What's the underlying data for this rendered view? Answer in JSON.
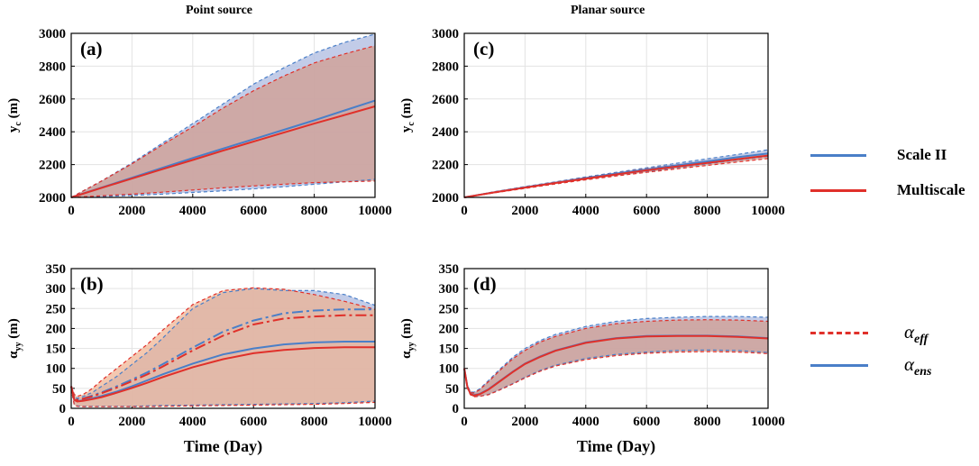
{
  "column_titles": {
    "left": "Point source",
    "right": "Planar source"
  },
  "legend": {
    "series": [
      {
        "label": "Scale II",
        "color": "#4a7fc8"
      },
      {
        "label": "Multiscale",
        "color": "#e0302a"
      }
    ],
    "statistics": [
      {
        "symbol": "α",
        "subscript": "eff",
        "style": "dash-dot"
      },
      {
        "symbol": "α",
        "subscript": "ens",
        "style": "solid"
      }
    ]
  },
  "colors": {
    "scale2": "#4a7fc8",
    "multiscale": "#e0302a",
    "scale2_band": "#b7c3e4",
    "multiscale_band": "#d39a8a",
    "multiscale_band_b": "#f0b08f"
  },
  "chart_data": [
    {
      "id": "a",
      "panel_label": "(a)",
      "type": "line",
      "xlabel": "",
      "ylabel": "y_c (m)",
      "xlim": [
        0,
        10000
      ],
      "ylim": [
        2000,
        3000
      ],
      "xticks": [
        "0",
        "2000",
        "4000",
        "6000",
        "8000",
        "10000"
      ],
      "yticks": [
        "2000",
        "2200",
        "2400",
        "2600",
        "2800",
        "3000"
      ],
      "grid": true,
      "x": [
        0,
        1000,
        2000,
        3000,
        4000,
        5000,
        6000,
        7000,
        8000,
        9000,
        10000
      ],
      "series": [
        {
          "name": "Scale II",
          "kind": "mean",
          "values": [
            2000,
            2060,
            2120,
            2180,
            2240,
            2298,
            2355,
            2412,
            2470,
            2530,
            2590
          ],
          "upper": [
            2000,
            2100,
            2210,
            2330,
            2450,
            2570,
            2690,
            2790,
            2880,
            2945,
            2995
          ],
          "lower": [
            2000,
            2005,
            2012,
            2020,
            2030,
            2040,
            2052,
            2065,
            2080,
            2095,
            2110
          ]
        },
        {
          "name": "Multiscale",
          "kind": "mean",
          "values": [
            2000,
            2058,
            2115,
            2172,
            2228,
            2285,
            2340,
            2395,
            2450,
            2502,
            2555
          ],
          "upper": [
            2000,
            2100,
            2205,
            2320,
            2430,
            2545,
            2650,
            2740,
            2820,
            2875,
            2925
          ],
          "lower": [
            2000,
            2010,
            2020,
            2032,
            2045,
            2058,
            2070,
            2080,
            2090,
            2095,
            2100
          ]
        }
      ]
    },
    {
      "id": "b",
      "panel_label": "(b)",
      "type": "line",
      "xlabel": "Time (Day)",
      "ylabel": "α_yy (m)",
      "xlim": [
        0,
        10000
      ],
      "ylim": [
        0,
        350
      ],
      "xticks": [
        "0",
        "2000",
        "4000",
        "6000",
        "8000",
        "10000"
      ],
      "yticks": [
        "0",
        "50",
        "100",
        "150",
        "200",
        "250",
        "300",
        "350"
      ],
      "grid": true,
      "x": [
        0,
        100,
        200,
        400,
        700,
        1000,
        1500,
        2000,
        2500,
        3000,
        4000,
        5000,
        6000,
        7000,
        8000,
        9000,
        10000
      ],
      "series": [
        {
          "name": "Scale II α_ens",
          "kind": "ens",
          "values": [
            55,
            22,
            18,
            20,
            25,
            31,
            42,
            55,
            70,
            85,
            112,
            135,
            150,
            160,
            165,
            167,
            167
          ],
          "upper": [
            55,
            30,
            25,
            30,
            40,
            55,
            80,
            110,
            140,
            175,
            250,
            290,
            300,
            295,
            295,
            285,
            258
          ],
          "lower": [
            50,
            10,
            6,
            5,
            5,
            5,
            5,
            5,
            6,
            7,
            8,
            9,
            10,
            11,
            12,
            14,
            18
          ]
        },
        {
          "name": "Scale II α_eff",
          "kind": "eff",
          "values": [
            55,
            25,
            22,
            25,
            32,
            40,
            55,
            72,
            90,
            110,
            152,
            192,
            220,
            238,
            245,
            248,
            248
          ]
        },
        {
          "name": "Multiscale α_ens",
          "kind": "ens",
          "values": [
            55,
            21,
            17,
            19,
            23,
            28,
            39,
            51,
            64,
            78,
            103,
            123,
            138,
            146,
            151,
            153,
            153
          ],
          "upper": [
            55,
            35,
            30,
            35,
            50,
            70,
            100,
            130,
            160,
            195,
            260,
            295,
            302,
            298,
            285,
            268,
            248
          ],
          "lower": [
            50,
            8,
            5,
            4,
            4,
            4,
            4,
            4,
            4,
            5,
            6,
            7,
            8,
            9,
            10,
            12,
            15
          ]
        },
        {
          "name": "Multiscale α_eff",
          "kind": "eff",
          "values": [
            55,
            24,
            21,
            24,
            30,
            38,
            52,
            68,
            85,
            104,
            145,
            182,
            210,
            225,
            230,
            233,
            233
          ]
        }
      ]
    },
    {
      "id": "c",
      "panel_label": "(c)",
      "type": "line",
      "xlabel": "",
      "ylabel": "y_c (m)",
      "xlim": [
        0,
        10000
      ],
      "ylim": [
        2000,
        3000
      ],
      "xticks": [
        "0",
        "2000",
        "4000",
        "6000",
        "8000",
        "10000"
      ],
      "yticks": [
        "2000",
        "2200",
        "2400",
        "2600",
        "2800",
        "3000"
      ],
      "grid": true,
      "x": [
        0,
        1000,
        2000,
        3000,
        4000,
        5000,
        6000,
        7000,
        8000,
        9000,
        10000
      ],
      "series": [
        {
          "name": "Scale II",
          "kind": "mean",
          "values": [
            2000,
            2032,
            2062,
            2090,
            2118,
            2145,
            2170,
            2195,
            2220,
            2245,
            2268
          ],
          "upper": [
            2000,
            2035,
            2066,
            2095,
            2125,
            2153,
            2180,
            2208,
            2235,
            2262,
            2290
          ],
          "lower": [
            2000,
            2029,
            2058,
            2085,
            2111,
            2137,
            2160,
            2182,
            2205,
            2228,
            2250
          ]
        },
        {
          "name": "Multiscale",
          "kind": "mean",
          "values": [
            2000,
            2031,
            2060,
            2088,
            2115,
            2140,
            2165,
            2188,
            2210,
            2233,
            2255
          ],
          "upper": [
            2000,
            2034,
            2064,
            2093,
            2121,
            2148,
            2174,
            2198,
            2222,
            2246,
            2268
          ],
          "lower": [
            2000,
            2028,
            2055,
            2082,
            2107,
            2131,
            2153,
            2174,
            2195,
            2216,
            2237
          ]
        }
      ]
    },
    {
      "id": "d",
      "panel_label": "(d)",
      "type": "line",
      "xlabel": "Time (Day)",
      "ylabel": "α_yy (m)",
      "xlim": [
        0,
        10000
      ],
      "ylim": [
        0,
        350
      ],
      "xticks": [
        "0",
        "2000",
        "4000",
        "6000",
        "8000",
        "10000"
      ],
      "yticks": [
        "0",
        "50",
        "100",
        "150",
        "200",
        "250",
        "300",
        "350"
      ],
      "grid": true,
      "x": [
        0,
        100,
        200,
        300,
        500,
        800,
        1200,
        1600,
        2000,
        2500,
        3000,
        4000,
        5000,
        6000,
        7000,
        8000,
        9000,
        10000
      ],
      "series": [
        {
          "name": "Scale II",
          "kind": "mean",
          "values": [
            100,
            55,
            38,
            33,
            36,
            48,
            70,
            92,
            112,
            130,
            145,
            165,
            176,
            181,
            182,
            182,
            180,
            176
          ],
          "upper": [
            100,
            58,
            42,
            40,
            48,
            70,
            100,
            128,
            150,
            170,
            185,
            205,
            218,
            225,
            228,
            230,
            230,
            228
          ],
          "lower": [
            100,
            52,
            35,
            30,
            30,
            35,
            48,
            62,
            78,
            95,
            108,
            125,
            135,
            141,
            145,
            146,
            145,
            140
          ]
        },
        {
          "name": "Multiscale",
          "kind": "mean",
          "values": [
            100,
            54,
            37,
            32,
            35,
            47,
            69,
            91,
            111,
            129,
            144,
            164,
            175,
            180,
            181,
            181,
            179,
            175
          ],
          "upper": [
            100,
            57,
            41,
            38,
            46,
            67,
            97,
            124,
            145,
            166,
            180,
            200,
            212,
            218,
            221,
            222,
            221,
            218
          ],
          "lower": [
            100,
            51,
            34,
            29,
            30,
            34,
            47,
            61,
            76,
            93,
            106,
            122,
            132,
            138,
            141,
            142,
            141,
            137
          ]
        }
      ]
    }
  ]
}
